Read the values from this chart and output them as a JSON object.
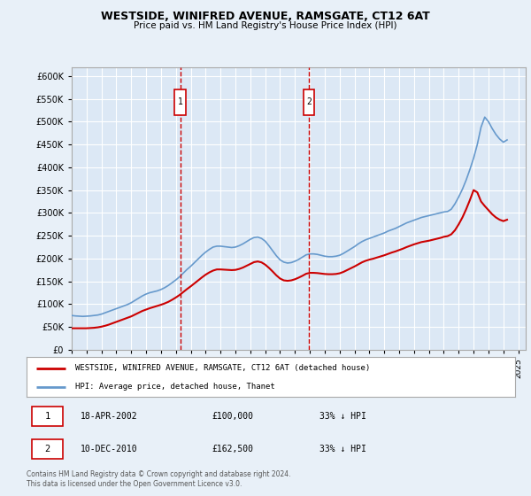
{
  "title": "WESTSIDE, WINIFRED AVENUE, RAMSGATE, CT12 6AT",
  "subtitle": "Price paid vs. HM Land Registry's House Price Index (HPI)",
  "ylim": [
    0,
    620000
  ],
  "yticks": [
    0,
    50000,
    100000,
    150000,
    200000,
    250000,
    300000,
    350000,
    400000,
    450000,
    500000,
    550000,
    600000
  ],
  "xlim_start": 1995.0,
  "xlim_end": 2025.5,
  "background_color": "#e8f0f8",
  "plot_bg_color": "#dce8f5",
  "grid_color": "#ffffff",
  "hpi_color": "#6699cc",
  "property_color": "#cc0000",
  "vline_color": "#cc0000",
  "legend_label_property": "WESTSIDE, WINIFRED AVENUE, RAMSGATE, CT12 6AT (detached house)",
  "legend_label_hpi": "HPI: Average price, detached house, Thanet",
  "transaction1_date": 2002.29,
  "transaction1_label": "18-APR-2002",
  "transaction1_price_label": "£100,000",
  "transaction1_hpi_label": "33% ↓ HPI",
  "transaction2_date": 2010.94,
  "transaction2_label": "10-DEC-2010",
  "transaction2_price_label": "£162,500",
  "transaction2_hpi_label": "33% ↓ HPI",
  "footnote1": "Contains HM Land Registry data © Crown copyright and database right 2024.",
  "footnote2": "This data is licensed under the Open Government Licence v3.0.",
  "hpi_data_x": [
    1995.0,
    1995.25,
    1995.5,
    1995.75,
    1996.0,
    1996.25,
    1996.5,
    1996.75,
    1997.0,
    1997.25,
    1997.5,
    1997.75,
    1998.0,
    1998.25,
    1998.5,
    1998.75,
    1999.0,
    1999.25,
    1999.5,
    1999.75,
    2000.0,
    2000.25,
    2000.5,
    2000.75,
    2001.0,
    2001.25,
    2001.5,
    2001.75,
    2002.0,
    2002.25,
    2002.5,
    2002.75,
    2003.0,
    2003.25,
    2003.5,
    2003.75,
    2004.0,
    2004.25,
    2004.5,
    2004.75,
    2005.0,
    2005.25,
    2005.5,
    2005.75,
    2006.0,
    2006.25,
    2006.5,
    2006.75,
    2007.0,
    2007.25,
    2007.5,
    2007.75,
    2008.0,
    2008.25,
    2008.5,
    2008.75,
    2009.0,
    2009.25,
    2009.5,
    2009.75,
    2010.0,
    2010.25,
    2010.5,
    2010.75,
    2011.0,
    2011.25,
    2011.5,
    2011.75,
    2012.0,
    2012.25,
    2012.5,
    2012.75,
    2013.0,
    2013.25,
    2013.5,
    2013.75,
    2014.0,
    2014.25,
    2014.5,
    2014.75,
    2015.0,
    2015.25,
    2015.5,
    2015.75,
    2016.0,
    2016.25,
    2016.5,
    2016.75,
    2017.0,
    2017.25,
    2017.5,
    2017.75,
    2018.0,
    2018.25,
    2018.5,
    2018.75,
    2019.0,
    2019.25,
    2019.5,
    2019.75,
    2020.0,
    2020.25,
    2020.5,
    2020.75,
    2021.0,
    2021.25,
    2021.5,
    2021.75,
    2022.0,
    2022.25,
    2022.5,
    2022.75,
    2023.0,
    2023.25,
    2023.5,
    2023.75,
    2024.0,
    2024.25
  ],
  "hpi_data_y": [
    75000,
    74000,
    73500,
    73000,
    73500,
    74000,
    75000,
    76000,
    78000,
    81000,
    84000,
    87000,
    90000,
    93000,
    96000,
    99000,
    103000,
    108000,
    113000,
    118000,
    122000,
    125000,
    127000,
    129000,
    132000,
    136000,
    141000,
    147000,
    153000,
    160000,
    168000,
    176000,
    183000,
    191000,
    199000,
    207000,
    214000,
    220000,
    225000,
    227000,
    227000,
    226000,
    225000,
    224000,
    225000,
    228000,
    232000,
    237000,
    242000,
    246000,
    247000,
    244000,
    238000,
    228000,
    217000,
    206000,
    197000,
    192000,
    190000,
    191000,
    194000,
    198000,
    203000,
    208000,
    210000,
    210000,
    209000,
    207000,
    205000,
    204000,
    204000,
    205000,
    207000,
    211000,
    216000,
    221000,
    226000,
    232000,
    237000,
    241000,
    244000,
    247000,
    250000,
    253000,
    256000,
    260000,
    263000,
    266000,
    270000,
    274000,
    278000,
    281000,
    284000,
    287000,
    290000,
    292000,
    294000,
    296000,
    298000,
    300000,
    302000,
    303000,
    308000,
    320000,
    335000,
    352000,
    372000,
    395000,
    420000,
    450000,
    488000,
    510000,
    500000,
    485000,
    472000,
    462000,
    455000,
    460000
  ],
  "property_data_x": [
    1995.0,
    1995.25,
    1995.5,
    1995.75,
    1996.0,
    1996.25,
    1996.5,
    1996.75,
    1997.0,
    1997.25,
    1997.5,
    1997.75,
    1998.0,
    1998.25,
    1998.5,
    1998.75,
    1999.0,
    1999.25,
    1999.5,
    1999.75,
    2000.0,
    2000.25,
    2000.5,
    2000.75,
    2001.0,
    2001.25,
    2001.5,
    2001.75,
    2002.0,
    2002.25,
    2002.5,
    2002.75,
    2003.0,
    2003.25,
    2003.5,
    2003.75,
    2004.0,
    2004.25,
    2004.5,
    2004.75,
    2005.0,
    2005.25,
    2005.5,
    2005.75,
    2006.0,
    2006.25,
    2006.5,
    2006.75,
    2007.0,
    2007.25,
    2007.5,
    2007.75,
    2008.0,
    2008.25,
    2008.5,
    2008.75,
    2009.0,
    2009.25,
    2009.5,
    2009.75,
    2010.0,
    2010.25,
    2010.5,
    2010.75,
    2011.0,
    2011.25,
    2011.5,
    2011.75,
    2012.0,
    2012.25,
    2012.5,
    2012.75,
    2013.0,
    2013.25,
    2013.5,
    2013.75,
    2014.0,
    2014.25,
    2014.5,
    2014.75,
    2015.0,
    2015.25,
    2015.5,
    2015.75,
    2016.0,
    2016.25,
    2016.5,
    2016.75,
    2017.0,
    2017.25,
    2017.5,
    2017.75,
    2018.0,
    2018.25,
    2018.5,
    2018.75,
    2019.0,
    2019.25,
    2019.5,
    2019.75,
    2020.0,
    2020.25,
    2020.5,
    2020.75,
    2021.0,
    2021.25,
    2021.5,
    2021.75,
    2022.0,
    2022.25,
    2022.5,
    2022.75,
    2023.0,
    2023.25,
    2023.5,
    2023.75,
    2024.0,
    2024.25
  ],
  "property_data_y": [
    47000,
    47000,
    47000,
    47000,
    47000,
    47500,
    48000,
    49000,
    50500,
    52500,
    55000,
    58000,
    61000,
    64000,
    67000,
    70000,
    73000,
    77000,
    81000,
    85000,
    88000,
    91000,
    93500,
    96000,
    98500,
    101500,
    105000,
    109500,
    114500,
    120000,
    126500,
    133000,
    139000,
    145500,
    152000,
    158500,
    164500,
    169500,
    173500,
    176000,
    176000,
    175500,
    175000,
    174500,
    175000,
    177000,
    180000,
    184000,
    188000,
    192000,
    193500,
    191500,
    186500,
    179500,
    171500,
    163000,
    156000,
    152000,
    151000,
    152000,
    154500,
    158000,
    162000,
    166500,
    168500,
    168500,
    168000,
    167000,
    166000,
    165500,
    165500,
    166000,
    167500,
    170500,
    174500,
    178500,
    182500,
    187000,
    191500,
    195000,
    197500,
    199500,
    202000,
    204500,
    207000,
    210000,
    213000,
    215500,
    218500,
    221500,
    225000,
    228000,
    231000,
    233500,
    236000,
    237500,
    239000,
    241000,
    243000,
    245000,
    247500,
    249000,
    253000,
    262000,
    275000,
    290000,
    308000,
    328000,
    350000,
    345000,
    325000,
    315000,
    306000,
    297000,
    290000,
    285000,
    282000,
    285000
  ]
}
